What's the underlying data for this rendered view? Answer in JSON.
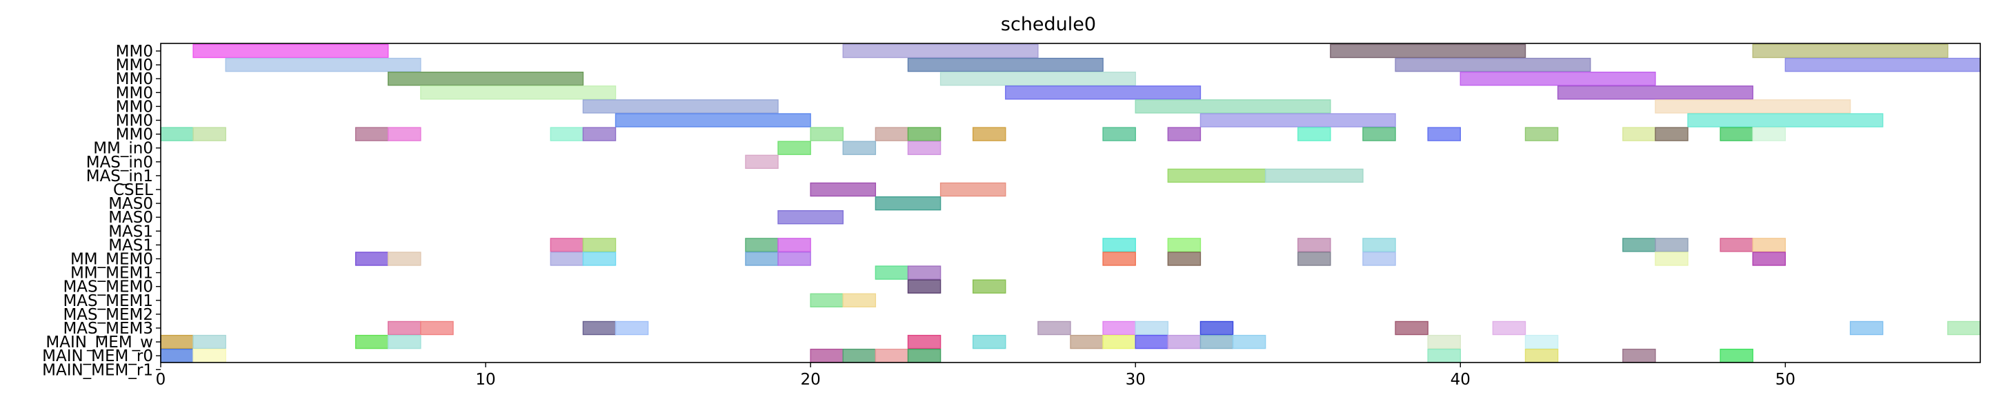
{
  "chart_data": {
    "type": "gantt",
    "title": "schedule0",
    "xlim": [
      0,
      56
    ],
    "x_ticks": [
      0,
      10,
      20,
      30,
      40,
      50
    ],
    "rows": [
      "MM0",
      "MM0",
      "MM0",
      "MM0",
      "MM0",
      "MM0",
      "MM0",
      "MM_in0",
      "MAS_in0",
      "MAS_in1",
      "CSEL",
      "MAS0",
      "MAS0",
      "MAS1",
      "MAS1",
      "MM_MEM0",
      "MM_MEM1",
      "MAS_MEM0",
      "MAS_MEM1",
      "MAS_MEM2",
      "MAS_MEM3",
      "MAIN_MEM_w",
      "MAIN_MEM_r0",
      "MAIN_MEM_r1"
    ],
    "bars": [
      {
        "row": 0,
        "start": 1,
        "end": 7,
        "color": "#ee55ee"
      },
      {
        "row": 0,
        "start": 21,
        "end": 27,
        "color": "#a8a0d8"
      },
      {
        "row": 0,
        "start": 36,
        "end": 42,
        "color": "#7a6470"
      },
      {
        "row": 0,
        "start": 49,
        "end": 55,
        "color": "#b8bc78"
      },
      {
        "row": 1,
        "start": 2,
        "end": 8,
        "color": "#a8c4e8"
      },
      {
        "row": 1,
        "start": 23,
        "end": 29,
        "color": "#6080b0"
      },
      {
        "row": 1,
        "start": 38,
        "end": 44,
        "color": "#8c88c0"
      },
      {
        "row": 1,
        "start": 50,
        "end": 56,
        "color": "#8a8ae8"
      },
      {
        "row": 2,
        "start": 7,
        "end": 13,
        "color": "#6a9a58"
      },
      {
        "row": 2,
        "start": 24,
        "end": 30,
        "color": "#b4e0d4"
      },
      {
        "row": 2,
        "start": 40,
        "end": 46,
        "color": "#c060ee"
      },
      {
        "row": 3,
        "start": 8,
        "end": 14,
        "color": "#c4f0b4"
      },
      {
        "row": 3,
        "start": 26,
        "end": 32,
        "color": "#7070ee"
      },
      {
        "row": 3,
        "start": 43,
        "end": 49,
        "color": "#a058c8"
      },
      {
        "row": 4,
        "start": 13,
        "end": 19,
        "color": "#98a8d8"
      },
      {
        "row": 4,
        "start": 30,
        "end": 36,
        "color": "#94dcb8"
      },
      {
        "row": 4,
        "start": 46,
        "end": 52,
        "color": "#f4dcbc"
      },
      {
        "row": 5,
        "start": 14,
        "end": 20,
        "color": "#5c88ee"
      },
      {
        "row": 5,
        "start": 32,
        "end": 38,
        "color": "#9c98e8"
      },
      {
        "row": 5,
        "start": 47,
        "end": 53,
        "color": "#6ce8d4"
      },
      {
        "row": 6,
        "start": 0,
        "end": 1,
        "color": "#70e0b0"
      },
      {
        "row": 6,
        "start": 1,
        "end": 2,
        "color": "#c0e0a0"
      },
      {
        "row": 6,
        "start": 6,
        "end": 7,
        "color": "#b07090"
      },
      {
        "row": 6,
        "start": 7,
        "end": 8,
        "color": "#e878d8"
      },
      {
        "row": 6,
        "start": 12,
        "end": 13,
        "color": "#90f0d0"
      },
      {
        "row": 6,
        "start": 13,
        "end": 14,
        "color": "#9070c8"
      },
      {
        "row": 6,
        "start": 20,
        "end": 21,
        "color": "#90e090"
      },
      {
        "row": 6,
        "start": 22,
        "end": 23,
        "color": "#c8a098"
      },
      {
        "row": 6,
        "start": 23,
        "end": 24,
        "color": "#60b050"
      },
      {
        "row": 6,
        "start": 25,
        "end": 26,
        "color": "#d0a040"
      },
      {
        "row": 6,
        "start": 29,
        "end": 30,
        "color": "#50c090"
      },
      {
        "row": 6,
        "start": 31,
        "end": 32,
        "color": "#a058c0"
      },
      {
        "row": 6,
        "start": 35,
        "end": 36,
        "color": "#60f0c8"
      },
      {
        "row": 6,
        "start": 37,
        "end": 38,
        "color": "#50b878"
      },
      {
        "row": 6,
        "start": 39,
        "end": 40,
        "color": "#6070f0"
      },
      {
        "row": 6,
        "start": 42,
        "end": 43,
        "color": "#90c870"
      },
      {
        "row": 6,
        "start": 45,
        "end": 46,
        "color": "#d8e898"
      },
      {
        "row": 6,
        "start": 46,
        "end": 47,
        "color": "#807060"
      },
      {
        "row": 6,
        "start": 48,
        "end": 49,
        "color": "#40c860"
      },
      {
        "row": 6,
        "start": 49,
        "end": 50,
        "color": "#d0f4d8"
      },
      {
        "row": 7,
        "start": 19,
        "end": 20,
        "color": "#70e070"
      },
      {
        "row": 7,
        "start": 21,
        "end": 22,
        "color": "#90b8d0"
      },
      {
        "row": 7,
        "start": 23,
        "end": 24,
        "color": "#d090e0"
      },
      {
        "row": 8,
        "start": 18,
        "end": 19,
        "color": "#d8a8c8"
      },
      {
        "row": 9,
        "start": 31,
        "end": 34,
        "color": "#98d868"
      },
      {
        "row": 9,
        "start": 34,
        "end": 37,
        "color": "#a0d8c8"
      },
      {
        "row": 10,
        "start": 20,
        "end": 22,
        "color": "#a050b0"
      },
      {
        "row": 10,
        "start": 24,
        "end": 26,
        "color": "#e89080"
      },
      {
        "row": 11,
        "start": 22,
        "end": 24,
        "color": "#40a090"
      },
      {
        "row": 12,
        "start": 19,
        "end": 21,
        "color": "#8070d8"
      },
      {
        "row": 14,
        "start": 12,
        "end": 13,
        "color": "#e060a0"
      },
      {
        "row": 14,
        "start": 13,
        "end": 14,
        "color": "#a8d870"
      },
      {
        "row": 14,
        "start": 18,
        "end": 19,
        "color": "#58b078"
      },
      {
        "row": 14,
        "start": 19,
        "end": 20,
        "color": "#d060e8"
      },
      {
        "row": 14,
        "start": 29,
        "end": 30,
        "color": "#50e8d8"
      },
      {
        "row": 14,
        "start": 31,
        "end": 32,
        "color": "#90f070"
      },
      {
        "row": 14,
        "start": 35,
        "end": 36,
        "color": "#c088b0"
      },
      {
        "row": 14,
        "start": 37,
        "end": 38,
        "color": "#90d8e0"
      },
      {
        "row": 14,
        "start": 45,
        "end": 46,
        "color": "#50a090"
      },
      {
        "row": 14,
        "start": 46,
        "end": 47,
        "color": "#90a0b8"
      },
      {
        "row": 14,
        "start": 48,
        "end": 49,
        "color": "#d86090"
      },
      {
        "row": 14,
        "start": 49,
        "end": 50,
        "color": "#f4c890"
      },
      {
        "row": 15,
        "start": 6,
        "end": 7,
        "color": "#7850d8"
      },
      {
        "row": 15,
        "start": 7,
        "end": 8,
        "color": "#e0c8b0"
      },
      {
        "row": 15,
        "start": 12,
        "end": 13,
        "color": "#a8a8e0"
      },
      {
        "row": 15,
        "start": 13,
        "end": 14,
        "color": "#70d8f0"
      },
      {
        "row": 15,
        "start": 18,
        "end": 19,
        "color": "#70a8d8"
      },
      {
        "row": 15,
        "start": 19,
        "end": 20,
        "color": "#b070e8"
      },
      {
        "row": 15,
        "start": 29,
        "end": 30,
        "color": "#f07050"
      },
      {
        "row": 15,
        "start": 31,
        "end": 32,
        "color": "#806858"
      },
      {
        "row": 15,
        "start": 35,
        "end": 36,
        "color": "#808090"
      },
      {
        "row": 15,
        "start": 37,
        "end": 38,
        "color": "#a8c0f0"
      },
      {
        "row": 15,
        "start": 46,
        "end": 47,
        "color": "#e8f4b0"
      },
      {
        "row": 15,
        "start": 49,
        "end": 50,
        "color": "#b040b0"
      },
      {
        "row": 16,
        "start": 22,
        "end": 23,
        "color": "#60e090"
      },
      {
        "row": 16,
        "start": 23,
        "end": 24,
        "color": "#a070c0"
      },
      {
        "row": 17,
        "start": 23,
        "end": 24,
        "color": "#5a4070"
      },
      {
        "row": 17,
        "start": 25,
        "end": 26,
        "color": "#88c050"
      },
      {
        "row": 18,
        "start": 20,
        "end": 21,
        "color": "#80e090"
      },
      {
        "row": 18,
        "start": 21,
        "end": 22,
        "color": "#f0d890"
      },
      {
        "row": 20,
        "start": 7,
        "end": 8,
        "color": "#e070a0"
      },
      {
        "row": 20,
        "start": 8,
        "end": 9,
        "color": "#f08080"
      },
      {
        "row": 20,
        "start": 13,
        "end": 14,
        "color": "#686090"
      },
      {
        "row": 20,
        "start": 14,
        "end": 15,
        "color": "#a0c0f8"
      },
      {
        "row": 20,
        "start": 27,
        "end": 28,
        "color": "#b098b8"
      },
      {
        "row": 20,
        "start": 29,
        "end": 30,
        "color": "#e080f0"
      },
      {
        "row": 20,
        "start": 30,
        "end": 31,
        "color": "#b0d8f0"
      },
      {
        "row": 20,
        "start": 32,
        "end": 33,
        "color": "#3848e0"
      },
      {
        "row": 20,
        "start": 38,
        "end": 39,
        "color": "#a05870"
      },
      {
        "row": 20,
        "start": 41,
        "end": 42,
        "color": "#e0b0e8"
      },
      {
        "row": 20,
        "start": 52,
        "end": 53,
        "color": "#80c0f0"
      },
      {
        "row": 20,
        "start": 55,
        "end": 56,
        "color": "#a8e8b0"
      },
      {
        "row": 21,
        "start": 0,
        "end": 1,
        "color": "#c8a040"
      },
      {
        "row": 21,
        "start": 1,
        "end": 2,
        "color": "#a8d8d8"
      },
      {
        "row": 21,
        "start": 6,
        "end": 7,
        "color": "#60e050"
      },
      {
        "row": 21,
        "start": 7,
        "end": 8,
        "color": "#a0e0d8"
      },
      {
        "row": 21,
        "start": 23,
        "end": 24,
        "color": "#e04080"
      },
      {
        "row": 21,
        "start": 25,
        "end": 26,
        "color": "#70d8d8"
      },
      {
        "row": 21,
        "start": 28,
        "end": 29,
        "color": "#c0a088"
      },
      {
        "row": 21,
        "start": 29,
        "end": 30,
        "color": "#e8f470"
      },
      {
        "row": 21,
        "start": 30,
        "end": 31,
        "color": "#6058f0"
      },
      {
        "row": 21,
        "start": 31,
        "end": 32,
        "color": "#c098e0"
      },
      {
        "row": 21,
        "start": 32,
        "end": 33,
        "color": "#80b0c8"
      },
      {
        "row": 21,
        "start": 33,
        "end": 34,
        "color": "#90d0f0"
      },
      {
        "row": 21,
        "start": 39,
        "end": 40,
        "color": "#d8e8c8"
      },
      {
        "row": 21,
        "start": 42,
        "end": 43,
        "color": "#c8f0f4"
      },
      {
        "row": 22,
        "start": 0,
        "end": 1,
        "color": "#4878e0"
      },
      {
        "row": 22,
        "start": 1,
        "end": 2,
        "color": "#f8f8b8"
      },
      {
        "row": 22,
        "start": 20,
        "end": 21,
        "color": "#b05098"
      },
      {
        "row": 22,
        "start": 21,
        "end": 22,
        "color": "#50a070"
      },
      {
        "row": 22,
        "start": 22,
        "end": 23,
        "color": "#e89898"
      },
      {
        "row": 22,
        "start": 23,
        "end": 24,
        "color": "#40a060"
      },
      {
        "row": 22,
        "start": 39,
        "end": 40,
        "color": "#90e8c0"
      },
      {
        "row": 22,
        "start": 42,
        "end": 43,
        "color": "#e0e070"
      },
      {
        "row": 22,
        "start": 45,
        "end": 46,
        "color": "#987088"
      },
      {
        "row": 22,
        "start": 48,
        "end": 49,
        "color": "#40e060"
      }
    ]
  }
}
